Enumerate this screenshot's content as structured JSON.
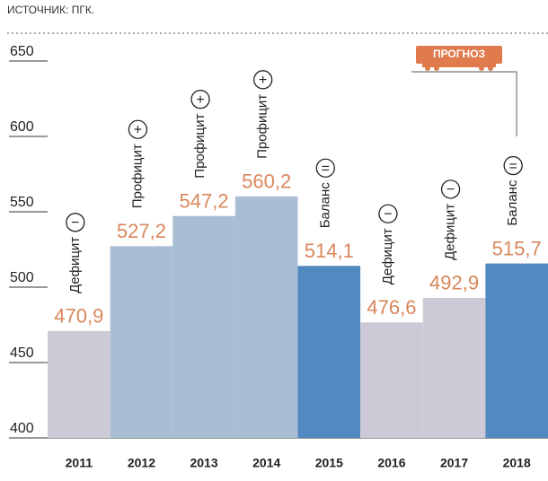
{
  "chart_data": {
    "type": "bar",
    "source": "ИСТОЧНИК: ПГК.",
    "forecast_label": "ПРОГНОЗ",
    "categories": [
      "2011",
      "2012",
      "2013",
      "2014",
      "2015",
      "2016",
      "2017",
      "2018"
    ],
    "values": [
      470.9,
      527.2,
      547.2,
      560.2,
      514.1,
      476.6,
      492.9,
      515.7
    ],
    "value_labels": [
      "470,9",
      "527,2",
      "547,2",
      "560,2",
      "514,1",
      "476,6",
      "492,9",
      "515,7"
    ],
    "statuses": [
      "Дефицит",
      "Профицит",
      "Профицит",
      "Профицит",
      "Баланс",
      "Дефицит",
      "Дефицит",
      "Баланс"
    ],
    "symbols": [
      "−",
      "+",
      "+",
      "+",
      "=",
      "−",
      "−",
      "="
    ],
    "colors": [
      "#cccad6",
      "#a9bed4",
      "#a9bed4",
      "#a9bed4",
      "#5189c0",
      "#cccad6",
      "#cccad6",
      "#5189c0"
    ],
    "label_color": "#d9875c",
    "ylim": [
      400,
      650
    ],
    "yticks": [
      400,
      450,
      500,
      550,
      600,
      650
    ]
  }
}
